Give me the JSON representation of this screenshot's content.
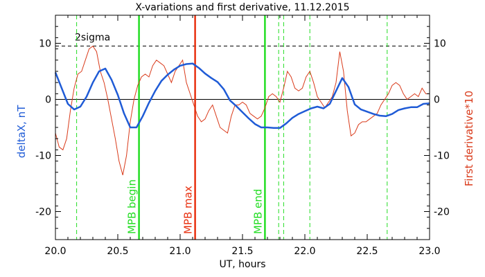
{
  "chart_data": {
    "type": "line",
    "title": "X-variations and first derivative, 11.12.2015",
    "xlabel": "UT, hours",
    "ylabel_left": "deltaX, nT",
    "ylabel_right": "First derivative*10",
    "xlim": [
      20.0,
      23.0
    ],
    "ylim": [
      -25,
      15
    ],
    "x_ticks": [
      20.0,
      20.5,
      21.0,
      21.5,
      22.0,
      22.5,
      23.0
    ],
    "x_tick_labels": [
      "20.0",
      "20.5",
      "21.0",
      "21.5",
      "22.0",
      "22.5",
      "23.0"
    ],
    "y_ticks": [
      10,
      0,
      -10,
      -20
    ],
    "y_tick_labels": [
      "10",
      "0",
      "-10",
      "-20"
    ],
    "grid": false,
    "colors": {
      "deltaX": "#1f5bd6",
      "derivative": "#d93a1a",
      "vline_green": "#22dd22",
      "mpb_max": "#e8300f",
      "axis": "#000000"
    },
    "sigma_line": {
      "y": 9.5,
      "label": "2sigma"
    },
    "zero_line": 0,
    "series": [
      {
        "key": "deltaX",
        "x": [
          20.0,
          20.05,
          20.1,
          20.15,
          20.2,
          20.25,
          20.3,
          20.35,
          20.4,
          20.45,
          20.5,
          20.55,
          20.6,
          20.65,
          20.7,
          20.75,
          20.8,
          20.85,
          20.9,
          20.95,
          21.0,
          21.05,
          21.1,
          21.15,
          21.2,
          21.25,
          21.3,
          21.35,
          21.4,
          21.45,
          21.5,
          21.55,
          21.6,
          21.65,
          21.7,
          21.75,
          21.8,
          21.85,
          21.9,
          21.95,
          22.0,
          22.05,
          22.1,
          22.15,
          22.2,
          22.25,
          22.3,
          22.35,
          22.4,
          22.45,
          22.5,
          22.55,
          22.6,
          22.65,
          22.7,
          22.75,
          22.8,
          22.85,
          22.9,
          22.95,
          23.0
        ],
        "values": [
          4.8,
          2.0,
          -0.8,
          -1.8,
          -1.3,
          0.5,
          3.0,
          5.0,
          5.5,
          3.5,
          0.8,
          -2.5,
          -5.0,
          -5.0,
          -3.0,
          -0.6,
          1.5,
          3.3,
          4.4,
          5.3,
          6.0,
          6.3,
          6.4,
          5.6,
          4.6,
          3.8,
          3.1,
          1.8,
          -0.2,
          -1.2,
          -2.3,
          -3.4,
          -4.4,
          -5.0,
          -5.0,
          -5.1,
          -5.1,
          -4.3,
          -3.3,
          -2.6,
          -2.1,
          -1.6,
          -1.3,
          -1.6,
          -0.8,
          1.5,
          3.8,
          2.2,
          -0.9,
          -1.8,
          -2.2,
          -2.6,
          -2.9,
          -3.0,
          -2.6,
          -1.9,
          -1.6,
          -1.4,
          -1.4,
          -0.8,
          -0.7
        ]
      },
      {
        "key": "derivative",
        "x": [
          20.0,
          20.03,
          20.06,
          20.09,
          20.12,
          20.15,
          20.18,
          20.21,
          20.24,
          20.27,
          20.3,
          20.33,
          20.36,
          20.39,
          20.42,
          20.45,
          20.48,
          20.51,
          20.54,
          20.57,
          20.6,
          20.63,
          20.66,
          20.69,
          20.72,
          20.75,
          20.78,
          20.81,
          20.84,
          20.87,
          20.9,
          20.93,
          20.96,
          20.99,
          21.02,
          21.05,
          21.08,
          21.11,
          21.14,
          21.17,
          21.2,
          21.23,
          21.26,
          21.29,
          21.32,
          21.35,
          21.38,
          21.41,
          21.44,
          21.47,
          21.5,
          21.53,
          21.56,
          21.59,
          21.62,
          21.65,
          21.68,
          21.71,
          21.74,
          21.77,
          21.8,
          21.83,
          21.86,
          21.89,
          21.92,
          21.95,
          21.98,
          22.01,
          22.04,
          22.07,
          22.1,
          22.13,
          22.16,
          22.19,
          22.22,
          22.25,
          22.28,
          22.31,
          22.34,
          22.37,
          22.4,
          22.43,
          22.46,
          22.49,
          22.52,
          22.55,
          22.58,
          22.61,
          22.64,
          22.67,
          22.7,
          22.73,
          22.76,
          22.79,
          22.82,
          22.85,
          22.88,
          22.91,
          22.94,
          22.97,
          23.0
        ],
        "values": [
          -6.0,
          -8.5,
          -9.0,
          -7.0,
          -2.0,
          2.0,
          4.5,
          5.0,
          7.0,
          9.0,
          9.5,
          8.5,
          5.0,
          3.0,
          0.0,
          -3.5,
          -7.0,
          -11.0,
          -13.5,
          -10.0,
          -4.0,
          0.0,
          2.5,
          4.0,
          4.5,
          4.0,
          6.0,
          7.0,
          6.5,
          6.0,
          4.5,
          3.0,
          5.0,
          6.0,
          7.0,
          3.0,
          1.0,
          -1.0,
          -3.0,
          -4.0,
          -3.5,
          -2.0,
          -1.0,
          -3.0,
          -5.0,
          -5.5,
          -6.0,
          -3.0,
          -1.0,
          -1.0,
          -0.5,
          -1.0,
          -2.5,
          -3.0,
          -3.5,
          -3.0,
          -1.5,
          0.5,
          1.0,
          0.5,
          -0.5,
          2.0,
          5.0,
          4.0,
          2.0,
          1.5,
          2.0,
          4.0,
          5.0,
          3.0,
          0.5,
          -0.5,
          -1.5,
          -0.5,
          0.5,
          3.0,
          8.5,
          5.0,
          -2.0,
          -6.5,
          -6.0,
          -4.5,
          -4.0,
          -4.0,
          -3.5,
          -3.0,
          -2.5,
          -1.0,
          0.0,
          1.0,
          2.5,
          3.0,
          2.5,
          1.0,
          0.0,
          0.5,
          1.0,
          0.5,
          2.0,
          1.0,
          1.0
        ]
      }
    ],
    "vertical_lines": [
      {
        "x": 20.17,
        "style": "dashed",
        "color": "#22dd22"
      },
      {
        "x": 20.67,
        "style": "solid",
        "color": "#22dd22",
        "label": "MPB begin"
      },
      {
        "x": 21.12,
        "style": "solid",
        "color": "#e8300f",
        "label": "MPB max"
      },
      {
        "x": 21.68,
        "style": "solid",
        "color": "#22dd22",
        "label": "MPB end"
      },
      {
        "x": 21.79,
        "style": "dashed",
        "color": "#22dd22"
      },
      {
        "x": 21.83,
        "style": "dashed",
        "color": "#22dd22"
      },
      {
        "x": 22.04,
        "style": "dashed",
        "color": "#22dd22"
      },
      {
        "x": 22.66,
        "style": "dashed",
        "color": "#22dd22"
      }
    ]
  }
}
